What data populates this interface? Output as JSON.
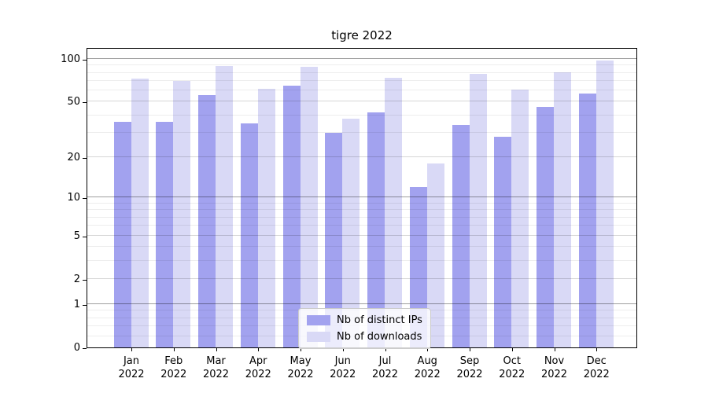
{
  "title": "tigre 2022",
  "chart_data": {
    "type": "bar",
    "title": "tigre 2022",
    "year": "2022",
    "categories": [
      "Jan",
      "Feb",
      "Mar",
      "Apr",
      "May",
      "Jun",
      "Jul",
      "Aug",
      "Sep",
      "Oct",
      "Nov",
      "Dec"
    ],
    "series": [
      {
        "name": "Nb of distinct IPs",
        "color": "#a2a2ef",
        "values": [
          36,
          36,
          56,
          35,
          65,
          30,
          42,
          12,
          34,
          28,
          46,
          57
        ]
      },
      {
        "name": "Nb of downloads",
        "color": "#d9d9f6",
        "values": [
          73,
          70,
          89,
          62,
          88,
          38,
          74,
          18,
          79,
          61,
          81,
          98
        ]
      }
    ],
    "xlabel": "",
    "ylabel": "",
    "yscale": "log1p",
    "yticks": [
      0,
      1,
      2,
      5,
      10,
      20,
      50,
      100
    ],
    "yticks_emphasized": [
      1,
      10,
      100
    ],
    "minor_gridlines": [
      0.2,
      0.4,
      0.6,
      0.8,
      3,
      4,
      6,
      7,
      8,
      9,
      30,
      40,
      60,
      70,
      80,
      90
    ],
    "ylim": [
      0,
      121
    ],
    "grid": true,
    "legend_position": "lower center"
  },
  "legend": {
    "items": [
      {
        "label": "Nb of distinct IPs",
        "color": "#a2a2ef"
      },
      {
        "label": "Nb of downloads",
        "color": "#d9d9f6"
      }
    ]
  },
  "colors": {
    "background": "#ffffff",
    "bar_dark": "#a2a2ef",
    "bar_light": "#d9d9f6",
    "grid_major_dark": "rgba(0,0,0,0.38)",
    "grid_major_light": "rgba(0,0,0,0.16)",
    "grid_minor": "rgba(0,0,0,0.07)",
    "spine": "#000000"
  }
}
